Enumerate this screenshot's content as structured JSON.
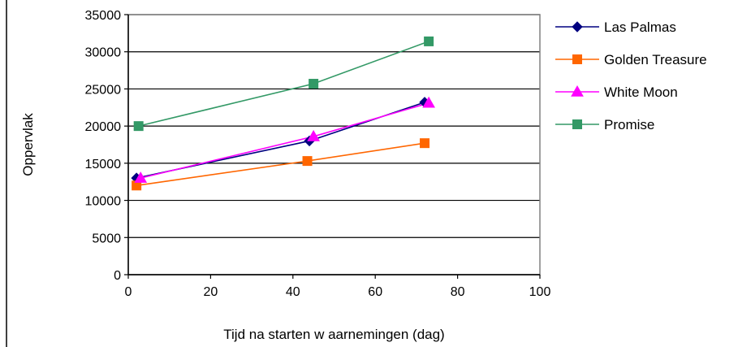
{
  "chart_data": {
    "type": "scatter",
    "title": "",
    "xlabel": "Tijd na starten w aarnemingen (dag)",
    "ylabel": "Oppervlak",
    "xlim": [
      0,
      100
    ],
    "ylim": [
      0,
      35000
    ],
    "xticks": [
      0,
      20,
      40,
      60,
      80,
      100
    ],
    "yticks": [
      0,
      5000,
      10000,
      15000,
      20000,
      25000,
      30000,
      35000
    ],
    "xtick_labels": [
      "0",
      "20",
      "40",
      "60",
      "80",
      "100"
    ],
    "ytick_labels": [
      "0",
      "5000",
      "10000",
      "15000",
      "20000",
      "25000",
      "30000",
      "35000"
    ],
    "grid": "horizontal",
    "legend_position": "right",
    "series": [
      {
        "name": "Las Palmas",
        "color": "#000080",
        "marker": "diamond",
        "x": [
          2,
          44,
          72
        ],
        "y": [
          13000,
          18000,
          23200
        ]
      },
      {
        "name": "Golden Treasure",
        "color": "#FF6600",
        "marker": "square",
        "x": [
          2,
          43.5,
          72
        ],
        "y": [
          12000,
          15300,
          17700
        ]
      },
      {
        "name": "White Moon",
        "color": "#FF00FF",
        "marker": "triangle",
        "x": [
          3,
          45,
          73
        ],
        "y": [
          13000,
          18600,
          23100
        ]
      },
      {
        "name": "Promise",
        "color": "#339966",
        "marker": "square",
        "x": [
          2.5,
          45,
          73
        ],
        "y": [
          20000,
          25700,
          31400
        ]
      }
    ]
  }
}
